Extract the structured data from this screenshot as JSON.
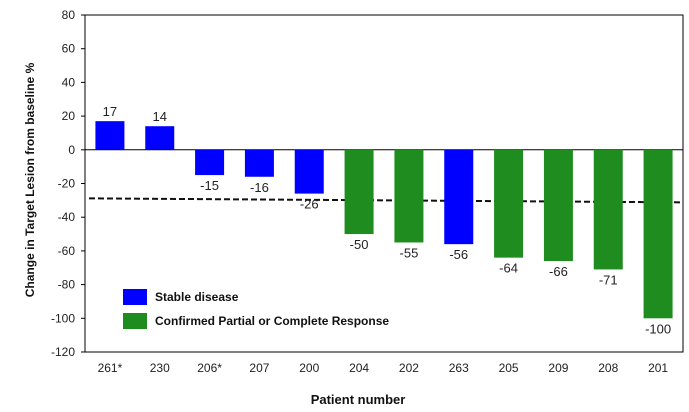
{
  "chart_data": {
    "type": "bar",
    "title": "",
    "xlabel": "Patient number",
    "ylabel": "Change in Target Lesion from baseline %",
    "ylim": [
      -120,
      80
    ],
    "yticks": [
      80,
      60,
      40,
      20,
      0,
      -20,
      -40,
      -60,
      -80,
      -100,
      -120
    ],
    "categories": [
      "261*",
      "230",
      "206*",
      "207",
      "200",
      "204",
      "202",
      "263",
      "205",
      "209",
      "208",
      "201"
    ],
    "values": [
      17,
      14,
      -15,
      -16,
      -26,
      -50,
      -55,
      -56,
      -64,
      -66,
      -71,
      -100
    ],
    "value_labels": [
      "17",
      "14",
      "-15",
      "-16",
      "-26",
      "-50",
      "-55",
      "-56",
      "-64",
      "-66",
      "-71",
      "-100"
    ],
    "groups": [
      "stable",
      "stable",
      "stable",
      "stable",
      "stable",
      "response",
      "response",
      "stable",
      "response",
      "response",
      "response",
      "response"
    ],
    "reference_line": {
      "y": -30,
      "style": "dashed"
    },
    "legend": {
      "placement": "bottom-left",
      "entries": [
        {
          "key": "stable",
          "label": "Stable disease",
          "color": "#0000ff"
        },
        {
          "key": "response",
          "label": "Confirmed Partial or Complete Response",
          "color": "#1e8c1e"
        }
      ]
    },
    "grid": false
  }
}
